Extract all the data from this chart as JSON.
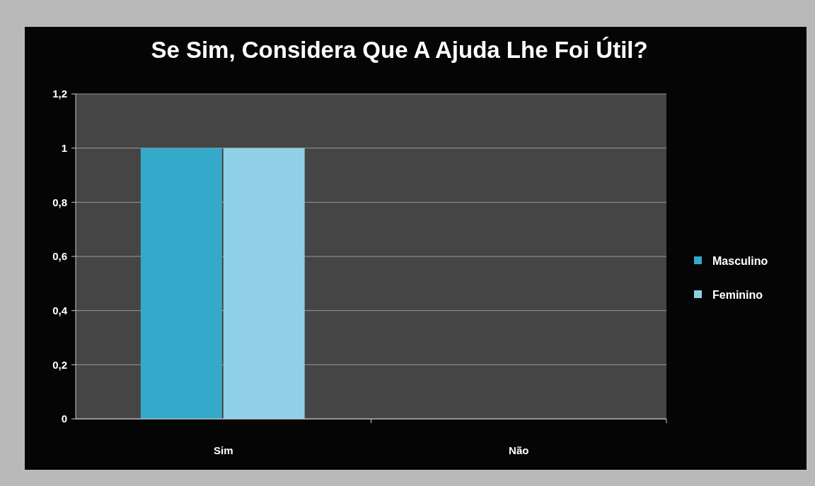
{
  "chart_data": {
    "type": "bar",
    "title": "Se Sim, Considera Que A Ajuda Lhe Foi Útil?",
    "categories": [
      "Sim",
      "Não"
    ],
    "series": [
      {
        "name": "Masculino",
        "color": "#35a9c9",
        "values": [
          1,
          0
        ]
      },
      {
        "name": "Feminino",
        "color": "#8fd0e6",
        "values": [
          1,
          0
        ]
      }
    ],
    "ylim": [
      0,
      1.2
    ],
    "yticks": [
      0,
      {
        "value": 0.2,
        "label": "0,2"
      },
      {
        "value": 0.4,
        "label": "0,4"
      },
      {
        "value": 0.6,
        "label": "0,6"
      },
      {
        "value": 0.8,
        "label": "0,8"
      },
      1,
      {
        "value": 1.2,
        "label": "1,2"
      }
    ],
    "grid": "y",
    "legend": "right"
  }
}
